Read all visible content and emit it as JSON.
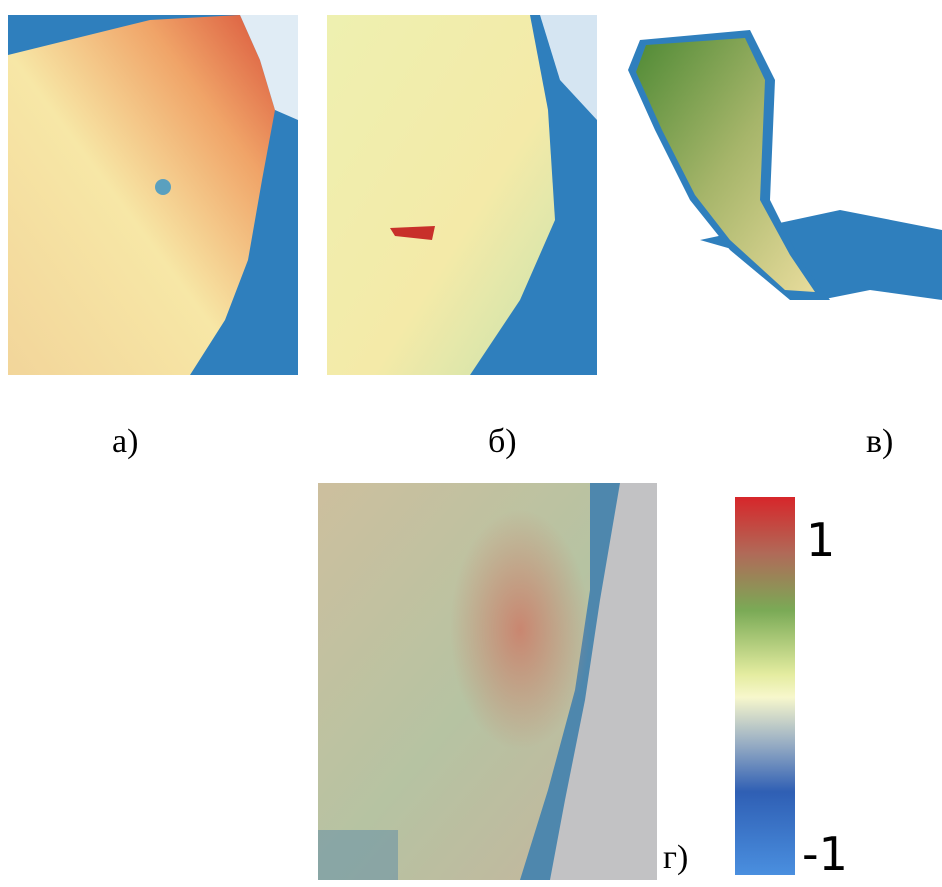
{
  "panels": [
    {
      "label": "а)"
    },
    {
      "label": "б)"
    },
    {
      "label": "в)"
    },
    {
      "label": "г)"
    }
  ],
  "colorbar": {
    "max": 1,
    "min": -1
  }
}
